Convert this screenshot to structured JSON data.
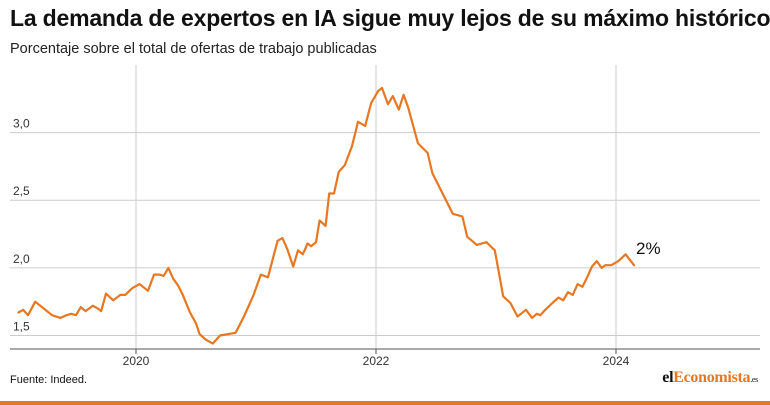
{
  "title": "La demanda de expertos en IA sigue muy lejos de su máximo histórico",
  "subtitle": "Porcentaje sobre el total de ofertas de trabajo publicadas",
  "source": "Fuente: Indeed.",
  "logo": {
    "part1": "el",
    "part2": "Economista",
    "part3": ".es"
  },
  "colors": {
    "line": "#e87722",
    "grid": "#cccccc",
    "accent": "#e87722"
  },
  "chart_data": {
    "type": "line",
    "title": "La demanda de expertos en IA sigue muy lejos de su máximo histórico",
    "subtitle": "Porcentaje sobre el total de ofertas de trabajo publicadas",
    "xlabel": "",
    "ylabel": "",
    "xlim": [
      2018.95,
      2025.2
    ],
    "ylim": [
      1.4,
      3.5
    ],
    "x_ticks": [
      2020,
      2022,
      2024
    ],
    "x_tick_labels": [
      "2020",
      "2022",
      "2024"
    ],
    "y_ticks": [
      1.5,
      2.0,
      2.5,
      3.0
    ],
    "y_tick_labels": [
      "1,5",
      "2,0",
      "2,5",
      "3,0"
    ],
    "grid": true,
    "end_label": "2%",
    "series": [
      {
        "x": [
          2019.02,
          2019.06,
          2019.1,
          2019.16,
          2019.23,
          2019.3,
          2019.37,
          2019.42,
          2019.46,
          2019.5,
          2019.54,
          2019.58,
          2019.64,
          2019.68,
          2019.71,
          2019.75,
          2019.81,
          2019.87,
          2019.91,
          2019.97,
          2020.03,
          2020.1,
          2020.15,
          2020.2,
          2020.23,
          2020.27,
          2020.31,
          2020.35,
          2020.39,
          2020.45,
          2020.5,
          2020.53,
          2020.58,
          2020.64,
          2020.7,
          2020.83,
          2020.9,
          2020.98,
          2021.04,
          2021.1,
          2021.15,
          2021.18,
          2021.22,
          2021.26,
          2021.31,
          2021.35,
          2021.39,
          2021.43,
          2021.46,
          2021.5,
          2021.53,
          2021.58,
          2021.61,
          2021.65,
          2021.69,
          2021.74,
          2021.8,
          2021.85,
          2021.91,
          2021.96,
          2022.02,
          2022.05,
          2022.1,
          2022.14,
          2022.19,
          2022.23,
          2022.27,
          2022.31,
          2022.35,
          2022.43,
          2022.47,
          2022.51,
          2022.56,
          2022.64,
          2022.72,
          2022.76,
          2022.8,
          2022.84,
          2022.92,
          2022.99,
          2023.06,
          2023.12,
          2023.18,
          2023.25,
          2023.3,
          2023.34,
          2023.37,
          2023.4,
          2023.47,
          2023.52,
          2023.56,
          2023.6,
          2023.64,
          2023.68,
          2023.72,
          2023.76,
          2023.8,
          2023.84,
          2023.88,
          2023.91,
          2023.96,
          2024.02,
          2024.08,
          2024.15
        ],
        "values": [
          1.67,
          1.69,
          1.65,
          1.75,
          1.7,
          1.65,
          1.63,
          1.65,
          1.66,
          1.65,
          1.71,
          1.68,
          1.72,
          1.7,
          1.68,
          1.81,
          1.76,
          1.8,
          1.8,
          1.85,
          1.88,
          1.83,
          1.95,
          1.95,
          1.94,
          2.0,
          1.92,
          1.87,
          1.8,
          1.67,
          1.59,
          1.51,
          1.47,
          1.44,
          1.5,
          1.52,
          1.64,
          1.8,
          1.95,
          1.93,
          2.1,
          2.2,
          2.22,
          2.14,
          2.01,
          2.13,
          2.1,
          2.18,
          2.16,
          2.19,
          2.35,
          2.31,
          2.55,
          2.55,
          2.71,
          2.76,
          2.9,
          3.08,
          3.05,
          3.22,
          3.31,
          3.33,
          3.21,
          3.27,
          3.17,
          3.28,
          3.18,
          3.05,
          2.92,
          2.85,
          2.7,
          2.63,
          2.54,
          2.4,
          2.38,
          2.23,
          2.2,
          2.17,
          2.19,
          2.13,
          1.79,
          1.74,
          1.64,
          1.69,
          1.63,
          1.66,
          1.65,
          1.68,
          1.74,
          1.78,
          1.76,
          1.82,
          1.8,
          1.88,
          1.86,
          1.93,
          2.01,
          2.05,
          2.0,
          2.02,
          2.02,
          2.05,
          2.1,
          2.02
        ]
      }
    ]
  }
}
